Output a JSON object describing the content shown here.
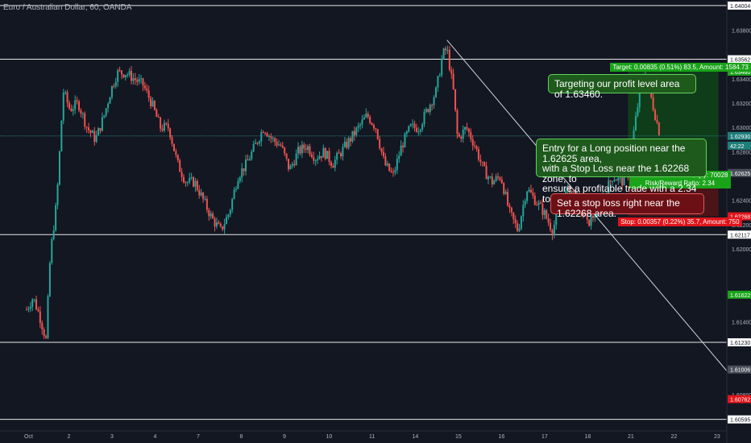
{
  "header": {
    "title": "Euro / Australian Dollar, 60, OANDA"
  },
  "chart_data": {
    "type": "candlestick",
    "price_range": [
      1.605,
      1.6405
    ],
    "price_ticks": [
      1.638,
      1.634,
      1.632,
      1.63,
      1.628,
      1.624,
      1.622,
      1.62,
      1.614,
      1.61,
      1.608
    ],
    "x_ticks": [
      "Oct",
      "2",
      "3",
      "4",
      "7",
      "8",
      "9",
      "10",
      "11",
      "14",
      "15",
      "16",
      "17",
      "18",
      "21",
      "22",
      "23"
    ],
    "horizontal_levels": [
      {
        "label": "1.64004",
        "price": 1.64004,
        "label_bg": "#ffffff",
        "label_fg": "#131722"
      },
      {
        "label": "1.63562",
        "price": 1.63562,
        "label_bg": "#ffffff",
        "label_fg": "#131722"
      },
      {
        "label": "1.62117",
        "price": 1.62117,
        "label_bg": "#ffffff",
        "label_fg": "#131722"
      },
      {
        "label": "1.61230",
        "price": 1.6123,
        "label_bg": "#ffffff",
        "label_fg": "#131722"
      },
      {
        "label": "1.60595",
        "price": 1.60595,
        "label_bg": "#ffffff",
        "label_fg": "#131722"
      }
    ],
    "axis_badges": [
      {
        "label": "1.63460",
        "price": 1.6346,
        "bg": "#19a319"
      },
      {
        "label": "1.62930",
        "price": 1.6293,
        "bg": "#1e7e7a"
      },
      {
        "label": "42:22",
        "price": 1.6285,
        "bg": "#1e7e7a"
      },
      {
        "label": "1.62625",
        "price": 1.62625,
        "bg": "#4a4e59"
      },
      {
        "label": "1.62268",
        "price": 1.62268,
        "bg": "#e0151b"
      },
      {
        "label": "1.61622",
        "price": 1.61622,
        "bg": "#19a319"
      },
      {
        "label": "1.61006",
        "price": 1.61006,
        "bg": "#4a4e59"
      },
      {
        "label": "1.60762",
        "price": 1.60762,
        "bg": "#e0151b"
      }
    ],
    "current_price": 1.6293,
    "trend_line": {
      "from": [
        9.75,
        1.6372
      ],
      "to": [
        17.3,
        1.6055
      ]
    },
    "position": {
      "entry": 1.62625,
      "target": 1.6346,
      "stop": 1.62268,
      "x_start": 13.95,
      "x_end": 16.05,
      "target_label": "Target: 0.00835 (0.51%) 83.5, Amount: 1584.73",
      "stop_label": "Stop: 0.00357 (0.22%) 35.7, Amount: 750",
      "pnl_label": "Closed P&L: 0.00835, Qty: 70028",
      "rr_label": "Risk/Reward Ratio: 2.34"
    },
    "path": [
      [
        0.0,
        1.615
      ],
      [
        0.15,
        1.616
      ],
      [
        0.3,
        1.6145
      ],
      [
        0.45,
        1.6125
      ],
      [
        0.55,
        1.6195
      ],
      [
        0.7,
        1.624
      ],
      [
        0.85,
        1.633
      ],
      [
        1.0,
        1.6315
      ],
      [
        1.2,
        1.632
      ],
      [
        1.4,
        1.63
      ],
      [
        1.6,
        1.629
      ],
      [
        1.8,
        1.631
      ],
      [
        1.95,
        1.633
      ],
      [
        2.1,
        1.6345
      ],
      [
        2.3,
        1.6345
      ],
      [
        2.5,
        1.634
      ],
      [
        2.7,
        1.6335
      ],
      [
        2.9,
        1.632
      ],
      [
        3.1,
        1.63
      ],
      [
        3.3,
        1.63
      ],
      [
        3.5,
        1.627
      ],
      [
        3.7,
        1.6255
      ],
      [
        3.9,
        1.6255
      ],
      [
        4.1,
        1.624
      ],
      [
        4.3,
        1.6225
      ],
      [
        4.5,
        1.6215
      ],
      [
        4.7,
        1.623
      ],
      [
        4.9,
        1.626
      ],
      [
        5.1,
        1.627
      ],
      [
        5.3,
        1.6285
      ],
      [
        5.5,
        1.63
      ],
      [
        5.7,
        1.629
      ],
      [
        5.9,
        1.6285
      ],
      [
        6.1,
        1.6265
      ],
      [
        6.3,
        1.628
      ],
      [
        6.5,
        1.6285
      ],
      [
        6.7,
        1.6275
      ],
      [
        6.9,
        1.628
      ],
      [
        7.1,
        1.627
      ],
      [
        7.3,
        1.628
      ],
      [
        7.5,
        1.629
      ],
      [
        7.7,
        1.63
      ],
      [
        7.9,
        1.631
      ],
      [
        8.1,
        1.63
      ],
      [
        8.3,
        1.627
      ],
      [
        8.5,
        1.626
      ],
      [
        8.7,
        1.6285
      ],
      [
        8.9,
        1.63
      ],
      [
        9.1,
        1.63
      ],
      [
        9.3,
        1.6315
      ],
      [
        9.5,
        1.633
      ],
      [
        9.65,
        1.636
      ],
      [
        9.75,
        1.6365
      ],
      [
        9.9,
        1.633
      ],
      [
        10.0,
        1.629
      ],
      [
        10.2,
        1.63
      ],
      [
        10.4,
        1.6285
      ],
      [
        10.6,
        1.6265
      ],
      [
        10.8,
        1.6255
      ],
      [
        11.0,
        1.626
      ],
      [
        11.2,
        1.623
      ],
      [
        11.4,
        1.6215
      ],
      [
        11.6,
        1.625
      ],
      [
        11.8,
        1.624
      ],
      [
        12.0,
        1.623
      ],
      [
        12.2,
        1.6215
      ],
      [
        12.4,
        1.624
      ],
      [
        12.6,
        1.625
      ],
      [
        12.8,
        1.624
      ],
      [
        13.0,
        1.622
      ],
      [
        13.2,
        1.623
      ],
      [
        13.4,
        1.6245
      ],
      [
        13.6,
        1.626
      ],
      [
        13.8,
        1.6255
      ],
      [
        13.95,
        1.6262
      ],
      [
        14.1,
        1.63
      ],
      [
        14.25,
        1.6335
      ],
      [
        14.35,
        1.6346
      ],
      [
        14.45,
        1.633
      ],
      [
        14.55,
        1.6315
      ],
      [
        14.65,
        1.63
      ],
      [
        14.7,
        1.6293
      ]
    ]
  },
  "notes": {
    "target": "Targeting our profit level area of 1.63460.",
    "entry_line1": "Entry for a Long position near the 1.62625 area,",
    "entry_line2": "with a Stop Loss near the 1.62268 zone, to",
    "entry_line3": "ensure a profitable trade with a 2.34 to 1 R/R.",
    "stop": "Set a stop loss right near the 1.62268 area."
  },
  "colors": {
    "background": "#131722",
    "up": "#26a69a",
    "down": "#ef5350",
    "target_zone": "#0f3d19",
    "stop_zone": "#4a1418",
    "note_green": "#1f5a1d",
    "note_red": "#6d1016"
  }
}
